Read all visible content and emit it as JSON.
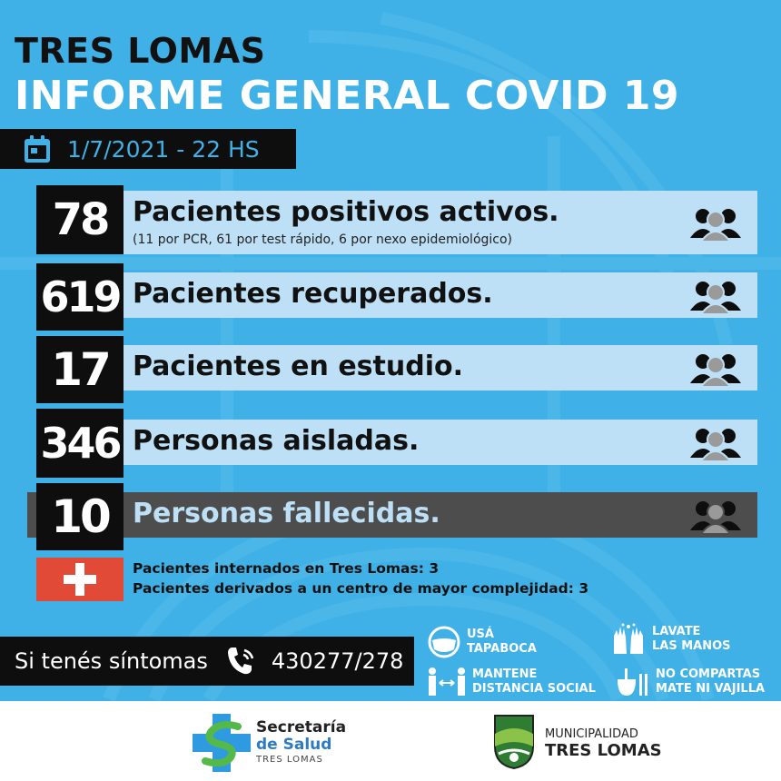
{
  "header": {
    "town": "TRES LOMAS",
    "report_title": "INFORME GENERAL COVID 19",
    "date": "1/7/2021 - 22 HS"
  },
  "stats": [
    {
      "value": "78",
      "label": "Pacientes positivos activos.",
      "detail": "(11 por PCR, 61 por test rápido, 6 por nexo epidemiológico)"
    },
    {
      "value": "619",
      "label": "Pacientes recuperados."
    },
    {
      "value": "17",
      "label": "Pacientes en estudio."
    },
    {
      "value": "346",
      "label": "Personas aisladas."
    },
    {
      "value": "10",
      "label": "Personas fallecidas."
    }
  ],
  "hospital": {
    "internados": "Pacientes internados en Tres Lomas: 3",
    "derivados": "Pacientes derivados a un centro de mayor complejidad: 3"
  },
  "contact": {
    "prompt": "Si tenés síntomas",
    "phone": "430277/278"
  },
  "tips": {
    "tapaboca_1": "USÁ",
    "tapaboca_2": "TAPABOCA",
    "manos_1": "LAVATE",
    "manos_2": "LAS MANOS",
    "distancia_1": "MANTENE",
    "distancia_2": "DISTANCIA SOCIAL",
    "mate_1": "NO COMPARTAS",
    "mate_2": "MATE NI VAJILLA"
  },
  "footer": {
    "salud_1": "Secretaría",
    "salud_2": "de Salud",
    "salud_3": "TRES LOMAS",
    "muni_1": "MUNICIPALIDAD",
    "muni_2": "TRES LOMAS"
  },
  "colors": {
    "background": "#3fb1e6",
    "bar_light": "#bde0f7",
    "bar_dark": "#4d4d4d",
    "number_box": "#0e0e0e",
    "cross": "#e04a36"
  },
  "icons": [
    "calendar-icon",
    "people-icon",
    "cross-icon",
    "phone-icon",
    "mask-icon",
    "hands-icon",
    "distance-icon",
    "mate-icon"
  ]
}
